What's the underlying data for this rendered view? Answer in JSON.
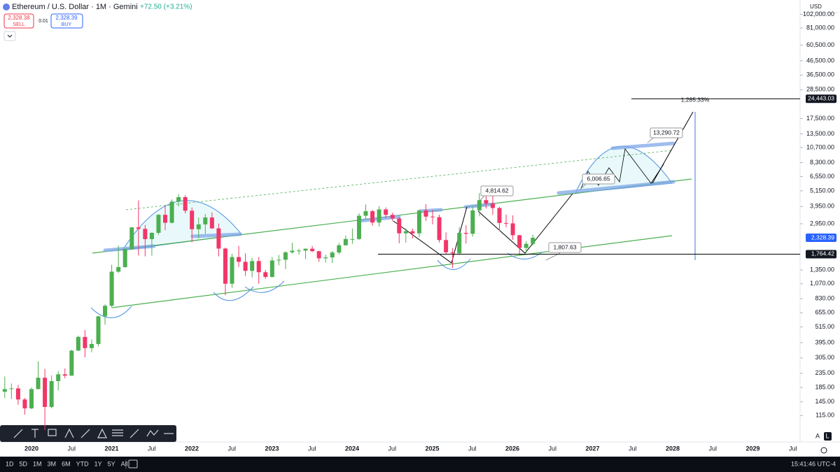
{
  "chart_data": {
    "type": "candlestick",
    "title": "Ethereum / U.S. Dollar · 1M · Gemini",
    "change": "+72.50 (+3.21%)",
    "sell_price": "2,328.38",
    "sell_label": "SELL",
    "spread": "0.01",
    "buy_price": "2,328.39",
    "buy_label": "BUY",
    "currency": "USD",
    "log_scale": true,
    "up_color": "#4caf50",
    "down_color": "#f23669",
    "ylim": [
      90,
      130000
    ],
    "yticks": [
      {
        "value": 102000,
        "label": "102,000.00"
      },
      {
        "value": 81000,
        "label": "81,000.00"
      },
      {
        "value": 60500,
        "label": "60,500.00"
      },
      {
        "value": 46500,
        "label": "46,500.00"
      },
      {
        "value": 36500,
        "label": "36,500.00"
      },
      {
        "value": 28500,
        "label": "28,500.00"
      },
      {
        "value": 17500,
        "label": "17,500.00"
      },
      {
        "value": 13500,
        "label": "13,500.00"
      },
      {
        "value": 10700,
        "label": "10,700.00"
      },
      {
        "value": 8300,
        "label": "8,300.00"
      },
      {
        "value": 6550,
        "label": "6,550.00"
      },
      {
        "value": 5150,
        "label": "5,150.00"
      },
      {
        "value": 3950,
        "label": "3,950.00"
      },
      {
        "value": 2950,
        "label": "2,950.00"
      },
      {
        "value": 1350,
        "label": "1,350.00"
      },
      {
        "value": 1070,
        "label": "1,070.00"
      },
      {
        "value": 830,
        "label": "830.00"
      },
      {
        "value": 655,
        "label": "655.00"
      },
      {
        "value": 515,
        "label": "515.00"
      },
      {
        "value": 395,
        "label": "395.00"
      },
      {
        "value": 305,
        "label": "305.00"
      },
      {
        "value": 235,
        "label": "235.00"
      },
      {
        "value": 185,
        "label": "185.00"
      },
      {
        "value": 145,
        "label": "145.00"
      },
      {
        "value": 115,
        "label": "115.00"
      }
    ],
    "price_labels": [
      {
        "value": 24443.03,
        "label": "24,443.03",
        "color": "#131722"
      },
      {
        "value": 2328.39,
        "label": "2,328.39",
        "color": "#2962ff"
      },
      {
        "value": 1764.42,
        "label": "1,764.42",
        "color": "#131722"
      }
    ],
    "x_labels": [
      "2020",
      "Jul",
      "2021",
      "Jul",
      "2022",
      "Jul",
      "2023",
      "Jul",
      "2024",
      "Jul",
      "2025",
      "Jul",
      "2026",
      "Jul",
      "2027",
      "Jul",
      "2028",
      "Jul",
      "2029",
      "Jul"
    ],
    "annotations": [
      "1,285.33%",
      "13,290.72",
      "6,006.65",
      "4,814.62",
      "1,807.63"
    ],
    "open": [
      172,
      180,
      182,
      151,
      130,
      180,
      218,
      133,
      206,
      231,
      226,
      345,
      435,
      360,
      386,
      616,
      737,
      1312,
      1418,
      1919,
      2773,
      2708,
      2275,
      2531,
      3433,
      3000,
      4290,
      4630,
      3680,
      2690,
      2920,
      3280,
      2730,
      1940,
      1070,
      1680,
      1550,
      1330,
      1570,
      1300,
      1200,
      1585,
      1605,
      1820,
      1870,
      1875,
      1935,
      1855,
      1645,
      1670,
      1815,
      2050,
      2280,
      2280,
      3380,
      3650,
      3010,
      3760,
      3430,
      3230,
      2510,
      2600,
      2510,
      3700,
      3330,
      3300,
      2240,
      1820,
      1790,
      2530,
      2490,
      3700,
      4400,
      4150,
      3850,
      2990,
      2970,
      2430,
      1960,
      2100
    ],
    "high": [
      223,
      198,
      193,
      155,
      185,
      288,
      253,
      227,
      244,
      255,
      350,
      445,
      489,
      417,
      623,
      755,
      1475,
      2042,
      1946,
      2800,
      4380,
      2890,
      2550,
      3470,
      4030,
      4450,
      4870,
      4780,
      3880,
      3280,
      3480,
      3580,
      2960,
      1970,
      1780,
      2030,
      1790,
      1660,
      1680,
      1350,
      1680,
      1740,
      1850,
      2140,
      1930,
      1940,
      2030,
      1870,
      1750,
      1860,
      2130,
      2420,
      2720,
      3520,
      4090,
      3730,
      3980,
      3890,
      3560,
      3300,
      2730,
      2720,
      3700,
      4110,
      3740,
      3440,
      2550,
      1960,
      2790,
      2880,
      3940,
      4950,
      4770,
      4760,
      3920,
      3450,
      3400,
      2450,
      2200,
      2450
    ],
    "low": [
      155,
      152,
      138,
      117,
      128,
      179,
      90,
      130,
      176,
      216,
      225,
      343,
      308,
      335,
      370,
      534,
      715,
      1284,
      1400,
      1900,
      1725,
      1700,
      1720,
      2450,
      2650,
      2970,
      3960,
      3520,
      2160,
      2300,
      2480,
      2700,
      1700,
      880,
      1000,
      1420,
      1220,
      1190,
      1070,
      1160,
      1190,
      1460,
      1370,
      1780,
      1750,
      1620,
      1830,
      1550,
      1530,
      1520,
      1760,
      2040,
      2100,
      2240,
      3180,
      2860,
      2810,
      3240,
      3080,
      2120,
      2150,
      2300,
      2350,
      3100,
      2920,
      2150,
      1760,
      1390,
      1750,
      2110,
      2370,
      3350,
      3820,
      3430,
      2620,
      2780,
      2250,
      1750,
      1800,
      2050
    ],
    "close": [
      180,
      182,
      151,
      130,
      180,
      218,
      133,
      206,
      231,
      226,
      345,
      435,
      360,
      386,
      616,
      737,
      1312,
      1418,
      1919,
      2773,
      2708,
      2275,
      2531,
      3433,
      3000,
      4290,
      4630,
      3680,
      2690,
      2920,
      3280,
      2730,
      1940,
      1070,
      1680,
      1550,
      1330,
      1570,
      1300,
      1200,
      1585,
      1605,
      1820,
      1870,
      1875,
      1935,
      1855,
      1645,
      1670,
      1815,
      2050,
      2280,
      2280,
      3380,
      3650,
      3010,
      3760,
      3430,
      3230,
      2510,
      2600,
      2510,
      3700,
      3330,
      3300,
      2240,
      1820,
      1790,
      2530,
      2490,
      3700,
      4400,
      4150,
      3850,
      2990,
      2970,
      2430,
      1960,
      2100,
      2328.39
    ]
  },
  "ui": {
    "timeframes": [
      "1D",
      "5D",
      "1M",
      "3M",
      "6M",
      "YTD",
      "1Y",
      "5Y",
      "All"
    ],
    "clock": "15:41:46 UTC-4",
    "scale_buttons": [
      "A",
      "L"
    ]
  }
}
